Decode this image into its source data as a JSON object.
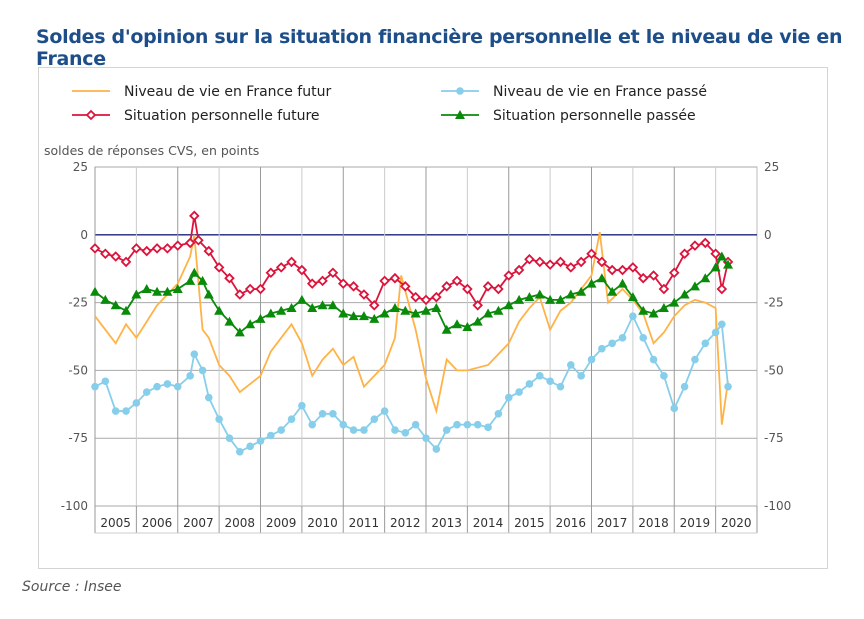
{
  "title": "Soldes d'opinion sur la situation financière personnelle et le niveau de vie en France",
  "source": "Source : Insee",
  "chart_data": {
    "type": "line",
    "title": "Soldes d'opinion sur la situation financière personnelle et le niveau de vie en France",
    "ylabel": "soldes de réponses CVS, en points",
    "ylim": [
      -100,
      25
    ],
    "yticks": [
      25,
      0,
      -25,
      -50,
      -75,
      -100
    ],
    "xlim": [
      2005,
      2021
    ],
    "xtick_labels": [
      "2005",
      "2006",
      "2007",
      "2008",
      "2009",
      "2010",
      "2011",
      "2012",
      "2013",
      "2014",
      "2015",
      "2016",
      "2017",
      "2018",
      "2019",
      "2020"
    ],
    "grid": true,
    "legend_placement": "top",
    "series": [
      {
        "name": "Niveau de vie en France futur",
        "color": "#ffb347",
        "marker": "none",
        "x": [
          2005,
          2005.25,
          2005.5,
          2005.75,
          2006,
          2006.25,
          2006.5,
          2006.75,
          2007,
          2007.3,
          2007.4,
          2007.6,
          2007.75,
          2008,
          2008.25,
          2008.5,
          2008.75,
          2009,
          2009.25,
          2009.5,
          2009.75,
          2010,
          2010.25,
          2010.5,
          2010.75,
          2011,
          2011.25,
          2011.5,
          2011.75,
          2012,
          2012.25,
          2012.4,
          2012.75,
          2013,
          2013.25,
          2013.5,
          2013.75,
          2014,
          2014.25,
          2014.5,
          2014.75,
          2015,
          2015.25,
          2015.5,
          2015.75,
          2016,
          2016.25,
          2016.5,
          2016.75,
          2017,
          2017.2,
          2017.4,
          2017.75,
          2018,
          2018.25,
          2018.5,
          2018.75,
          2019,
          2019.25,
          2019.5,
          2019.75,
          2020,
          2020.15,
          2020.3
        ],
        "y": [
          -30,
          -35,
          -40,
          -33,
          -38,
          -32,
          -26,
          -22,
          -18,
          -8,
          0,
          -35,
          -38,
          -48,
          -52,
          -58,
          -55,
          -52,
          -43,
          -38,
          -33,
          -40,
          -52,
          -46,
          -42,
          -48,
          -45,
          -56,
          -52,
          -48,
          -38,
          -15,
          -35,
          -53,
          -65,
          -46,
          -50,
          -50,
          -49,
          -48,
          -44,
          -40,
          -32,
          -27,
          -23,
          -35,
          -28,
          -25,
          -20,
          -15,
          1,
          -25,
          -20,
          -24,
          -29,
          -40,
          -36,
          -30,
          -26,
          -24,
          -25,
          -27,
          -70,
          -54
        ]
      },
      {
        "name": "Niveau de vie en France passé",
        "color": "#87ceeb",
        "marker": "circle",
        "x": [
          2005,
          2005.25,
          2005.5,
          2005.75,
          2006,
          2006.25,
          2006.5,
          2006.75,
          2007,
          2007.3,
          2007.4,
          2007.6,
          2007.75,
          2008,
          2008.25,
          2008.5,
          2008.75,
          2009,
          2009.25,
          2009.5,
          2009.75,
          2010,
          2010.25,
          2010.5,
          2010.75,
          2011,
          2011.25,
          2011.5,
          2011.75,
          2012,
          2012.25,
          2012.5,
          2012.75,
          2013,
          2013.25,
          2013.5,
          2013.75,
          2014,
          2014.25,
          2014.5,
          2014.75,
          2015,
          2015.25,
          2015.5,
          2015.75,
          2016,
          2016.25,
          2016.5,
          2016.75,
          2017,
          2017.25,
          2017.5,
          2017.75,
          2018,
          2018.25,
          2018.5,
          2018.75,
          2019,
          2019.25,
          2019.5,
          2019.75,
          2020,
          2020.15,
          2020.3
        ],
        "y": [
          -56,
          -54,
          -65,
          -65,
          -62,
          -58,
          -56,
          -55,
          -56,
          -52,
          -44,
          -50,
          -60,
          -68,
          -75,
          -80,
          -78,
          -76,
          -74,
          -72,
          -68,
          -63,
          -70,
          -66,
          -66,
          -70,
          -72,
          -72,
          -68,
          -65,
          -72,
          -73,
          -70,
          -75,
          -79,
          -72,
          -70,
          -70,
          -70,
          -71,
          -66,
          -60,
          -58,
          -55,
          -52,
          -54,
          -56,
          -48,
          -52,
          -46,
          -42,
          -40,
          -38,
          -30,
          -38,
          -46,
          -52,
          -64,
          -56,
          -46,
          -40,
          -36,
          -33,
          -56
        ]
      },
      {
        "name": "Situation personnelle future",
        "color": "#dc143c",
        "marker": "diamond",
        "x": [
          2005,
          2005.25,
          2005.5,
          2005.75,
          2006,
          2006.25,
          2006.5,
          2006.75,
          2007,
          2007.3,
          2007.4,
          2007.5,
          2007.75,
          2008,
          2008.25,
          2008.5,
          2008.75,
          2009,
          2009.25,
          2009.5,
          2009.75,
          2010,
          2010.25,
          2010.5,
          2010.75,
          2011,
          2011.25,
          2011.5,
          2011.75,
          2012,
          2012.25,
          2012.5,
          2012.75,
          2013,
          2013.25,
          2013.5,
          2013.75,
          2014,
          2014.25,
          2014.5,
          2014.75,
          2015,
          2015.25,
          2015.5,
          2015.75,
          2016,
          2016.25,
          2016.5,
          2016.75,
          2017,
          2017.25,
          2017.5,
          2017.75,
          2018,
          2018.25,
          2018.5,
          2018.75,
          2019,
          2019.25,
          2019.5,
          2019.75,
          2020,
          2020.15,
          2020.3
        ],
        "y": [
          -5,
          -7,
          -8,
          -10,
          -5,
          -6,
          -5,
          -5,
          -4,
          -3,
          7,
          -2,
          -6,
          -12,
          -16,
          -22,
          -20,
          -20,
          -14,
          -12,
          -10,
          -13,
          -18,
          -17,
          -14,
          -18,
          -19,
          -22,
          -26,
          -17,
          -16,
          -19,
          -23,
          -24,
          -23,
          -19,
          -17,
          -20,
          -26,
          -19,
          -20,
          -15,
          -13,
          -9,
          -10,
          -11,
          -10,
          -12,
          -10,
          -7,
          -10,
          -13,
          -13,
          -12,
          -16,
          -15,
          -20,
          -14,
          -7,
          -4,
          -3,
          -7,
          -20,
          -10
        ]
      },
      {
        "name": "Situation personnelle passée",
        "color": "#0a8a0a",
        "marker": "triangle",
        "x": [
          2005,
          2005.25,
          2005.5,
          2005.75,
          2006,
          2006.25,
          2006.5,
          2006.75,
          2007,
          2007.3,
          2007.4,
          2007.6,
          2007.75,
          2008,
          2008.25,
          2008.5,
          2008.75,
          2009,
          2009.25,
          2009.5,
          2009.75,
          2010,
          2010.25,
          2010.5,
          2010.75,
          2011,
          2011.25,
          2011.5,
          2011.75,
          2012,
          2012.25,
          2012.5,
          2012.75,
          2013,
          2013.25,
          2013.5,
          2013.75,
          2014,
          2014.25,
          2014.5,
          2014.75,
          2015,
          2015.25,
          2015.5,
          2015.75,
          2016,
          2016.25,
          2016.5,
          2016.75,
          2017,
          2017.25,
          2017.5,
          2017.75,
          2018,
          2018.25,
          2018.5,
          2018.75,
          2019,
          2019.25,
          2019.5,
          2019.75,
          2020,
          2020.15,
          2020.3
        ],
        "y": [
          -21,
          -24,
          -26,
          -28,
          -22,
          -20,
          -21,
          -21,
          -20,
          -17,
          -14,
          -17,
          -22,
          -28,
          -32,
          -36,
          -33,
          -31,
          -29,
          -28,
          -27,
          -24,
          -27,
          -26,
          -26,
          -29,
          -30,
          -30,
          -31,
          -29,
          -27,
          -28,
          -29,
          -28,
          -27,
          -35,
          -33,
          -34,
          -32,
          -29,
          -28,
          -26,
          -24,
          -23,
          -22,
          -24,
          -24,
          -22,
          -21,
          -18,
          -16,
          -21,
          -18,
          -23,
          -28,
          -29,
          -27,
          -25,
          -22,
          -19,
          -16,
          -12,
          -8,
          -11
        ]
      }
    ]
  }
}
